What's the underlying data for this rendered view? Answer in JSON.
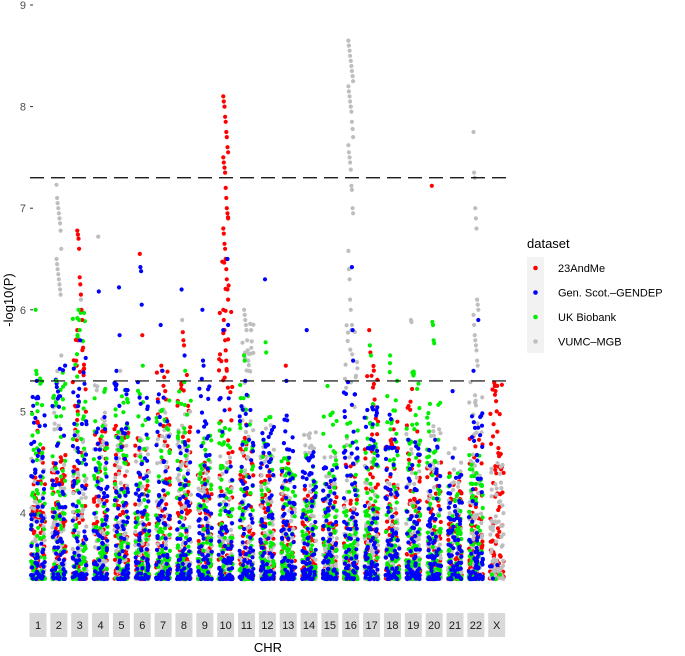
{
  "chart_data": {
    "type": "scatter",
    "subtype": "manhattan",
    "title": "",
    "xlabel": "CHR",
    "ylabel": "-log10(P)",
    "ylim": [
      3.3,
      9.05
    ],
    "yticks": [
      4,
      5,
      6,
      7,
      8,
      9
    ],
    "grid": false,
    "thresholds": [
      7.3,
      5.3
    ],
    "threshold_style": "dashed",
    "legend": {
      "title": "dataset",
      "placement": "right",
      "entries": [
        {
          "name": "23AndMe",
          "color": "#ff0000"
        },
        {
          "name": "Gen. Scot.–GENDEP",
          "color": "#0000ff"
        },
        {
          "name": "UK Biobank",
          "color": "#00ee00"
        },
        {
          "name": "VUMC–MGB",
          "color": "#bebebe"
        }
      ]
    },
    "chromosomes": [
      "1",
      "2",
      "3",
      "4",
      "5",
      "6",
      "7",
      "8",
      "9",
      "10",
      "11",
      "12",
      "13",
      "14",
      "15",
      "16",
      "17",
      "18",
      "19",
      "20",
      "21",
      "22",
      "X"
    ],
    "bulk_max": {
      "series_order": [
        "23AndMe",
        "VUMC–MGB",
        "UK Biobank",
        "Gen. Scot.–GENDEP"
      ],
      "values": [
        [
          4.9,
          4.6,
          5.4,
          5.3
        ],
        [
          4.6,
          5.5,
          5.4,
          5.6
        ],
        [
          5.9,
          4.8,
          6.0,
          5.7
        ],
        [
          4.9,
          5.3,
          5.3,
          5.0
        ],
        [
          4.9,
          4.8,
          5.3,
          5.4
        ],
        [
          4.8,
          4.8,
          5.3,
          5.3
        ],
        [
          5.4,
          5.1,
          5.2,
          5.2
        ],
        [
          5.4,
          5.0,
          5.3,
          4.8
        ],
        [
          4.5,
          4.6,
          4.8,
          5.4
        ],
        [
          7.0,
          4.6,
          4.9,
          5.2
        ],
        [
          4.9,
          6.0,
          5.3,
          5.2
        ],
        [
          4.6,
          4.9,
          5.0,
          5.0
        ],
        [
          4.5,
          4.4,
          4.6,
          5.0
        ],
        [
          4.3,
          4.8,
          4.6,
          4.6
        ],
        [
          4.3,
          4.6,
          5.0,
          4.5
        ],
        [
          4.5,
          5.9,
          5.0,
          5.3
        ],
        [
          5.5,
          4.6,
          5.2,
          5.1
        ],
        [
          4.9,
          4.3,
          5.5,
          5.0
        ],
        [
          5.2,
          4.8,
          5.4,
          4.9
        ],
        [
          4.5,
          4.9,
          5.2,
          4.8
        ],
        [
          4.4,
          4.7,
          4.4,
          4.6
        ],
        [
          4.8,
          5.3,
          4.6,
          5.0
        ],
        [
          5.3,
          4.5,
          3.5,
          3.5
        ]
      ]
    },
    "top_hits": [
      {
        "chr": "1",
        "points": [
          [
            "UK Biobank",
            6.0
          ],
          [
            "UK Biobank",
            5.4
          ],
          [
            "Gen. Scot.–GENDEP",
            5.3
          ],
          [
            "23AndMe",
            4.9
          ]
        ]
      },
      {
        "chr": "2",
        "points": [
          [
            "VUMC–MGB",
            7.23
          ],
          [
            "VUMC–MGB",
            7.1
          ],
          [
            "VUMC–MGB",
            7.05
          ],
          [
            "VUMC–MGB",
            7.0
          ],
          [
            "VUMC–MGB",
            6.95
          ],
          [
            "VUMC–MGB",
            6.9
          ],
          [
            "VUMC–MGB",
            6.85
          ],
          [
            "VUMC–MGB",
            6.78
          ],
          [
            "VUMC–MGB",
            6.6
          ],
          [
            "VUMC–MGB",
            6.5
          ],
          [
            "VUMC–MGB",
            6.45
          ],
          [
            "VUMC–MGB",
            6.4
          ],
          [
            "VUMC–MGB",
            6.35
          ],
          [
            "VUMC–MGB",
            6.3
          ],
          [
            "VUMC–MGB",
            6.25
          ],
          [
            "VUMC–MGB",
            6.2
          ],
          [
            "VUMC–MGB",
            6.15
          ],
          [
            "VUMC–MGB",
            5.55
          ],
          [
            "UK Biobank",
            5.3
          ]
        ]
      },
      {
        "chr": "3",
        "points": [
          [
            "23AndMe",
            6.78
          ],
          [
            "23AndMe",
            6.74
          ],
          [
            "23AndMe",
            6.7
          ],
          [
            "23AndMe",
            6.6
          ],
          [
            "23AndMe",
            6.32
          ],
          [
            "23AndMe",
            6.25
          ],
          [
            "23AndMe",
            6.15
          ],
          [
            "23AndMe",
            6.0
          ],
          [
            "23AndMe",
            5.9
          ],
          [
            "23AndMe",
            5.8
          ],
          [
            "23AndMe",
            5.7
          ],
          [
            "UK Biobank",
            6.0
          ],
          [
            "UK Biobank",
            5.9
          ],
          [
            "UK Biobank",
            5.8
          ],
          [
            "Gen. Scot.–GENDEP",
            5.7
          ],
          [
            "VUMC–MGB",
            6.1
          ]
        ]
      },
      {
        "chr": "4",
        "points": [
          [
            "VUMC–MGB",
            6.72
          ],
          [
            "Gen. Scot.–GENDEP",
            6.18
          ]
        ]
      },
      {
        "chr": "5",
        "points": [
          [
            "Gen. Scot.–GENDEP",
            6.22
          ],
          [
            "Gen. Scot.–GENDEP",
            5.75
          ],
          [
            "VUMC–MGB",
            5.4
          ]
        ]
      },
      {
        "chr": "6",
        "points": [
          [
            "23AndMe",
            6.55
          ],
          [
            "Gen. Scot.–GENDEP",
            6.42
          ],
          [
            "Gen. Scot.–GENDEP",
            6.38
          ],
          [
            "Gen. Scot.–GENDEP",
            6.05
          ],
          [
            "23AndMe",
            5.75
          ],
          [
            "UK Biobank",
            5.45
          ]
        ]
      },
      {
        "chr": "7",
        "points": [
          [
            "Gen. Scot.–GENDEP",
            5.85
          ],
          [
            "23AndMe",
            5.45
          ],
          [
            "23AndMe",
            5.4
          ],
          [
            "Gen. Scot.–GENDEP",
            5.4
          ]
        ]
      },
      {
        "chr": "8",
        "points": [
          [
            "Gen. Scot.–GENDEP",
            6.2
          ],
          [
            "VUMC–MGB",
            5.9
          ],
          [
            "23AndMe",
            5.78
          ],
          [
            "23AndMe",
            5.7
          ],
          [
            "23AndMe",
            5.65
          ],
          [
            "Gen. Scot.–GENDEP",
            5.55
          ],
          [
            "UK Biobank",
            5.4
          ]
        ]
      },
      {
        "chr": "9",
        "points": [
          [
            "Gen. Scot.–GENDEP",
            6.0
          ],
          [
            "Gen. Scot.–GENDEP",
            5.5
          ],
          [
            "Gen. Scot.–GENDEP",
            5.45
          ]
        ]
      },
      {
        "chr": "10",
        "points": [
          [
            "23AndMe",
            8.1
          ],
          [
            "23AndMe",
            8.05
          ],
          [
            "23AndMe",
            8.0
          ],
          [
            "23AndMe",
            7.9
          ],
          [
            "23AndMe",
            7.85
          ],
          [
            "23AndMe",
            7.75
          ],
          [
            "23AndMe",
            7.7
          ],
          [
            "23AndMe",
            7.6
          ],
          [
            "23AndMe",
            7.55
          ],
          [
            "23AndMe",
            7.5
          ],
          [
            "23AndMe",
            7.45
          ],
          [
            "23AndMe",
            7.4
          ],
          [
            "23AndMe",
            7.35
          ],
          [
            "23AndMe",
            7.2
          ],
          [
            "23AndMe",
            7.1
          ],
          [
            "23AndMe",
            7.0
          ],
          [
            "23AndMe",
            6.95
          ],
          [
            "23AndMe",
            6.9
          ],
          [
            "23AndMe",
            6.8
          ],
          [
            "23AndMe",
            6.75
          ],
          [
            "23AndMe",
            6.65
          ],
          [
            "23AndMe",
            6.6
          ],
          [
            "23AndMe",
            6.5
          ],
          [
            "23AndMe",
            6.4
          ],
          [
            "23AndMe",
            6.3
          ],
          [
            "23AndMe",
            6.2
          ],
          [
            "23AndMe",
            6.1
          ],
          [
            "23AndMe",
            6.0
          ],
          [
            "23AndMe",
            5.9
          ],
          [
            "23AndMe",
            5.8
          ],
          [
            "23AndMe",
            5.7
          ],
          [
            "23AndMe",
            5.6
          ],
          [
            "23AndMe",
            5.5
          ],
          [
            "23AndMe",
            5.4
          ],
          [
            "Gen. Scot.–GENDEP",
            6.5
          ],
          [
            "Gen. Scot.–GENDEP",
            5.85
          ],
          [
            "Gen. Scot.–GENDEP",
            5.8
          ]
        ]
      },
      {
        "chr": "11",
        "points": [
          [
            "VUMC–MGB",
            6.0
          ],
          [
            "VUMC–MGB",
            5.95
          ],
          [
            "VUMC–MGB",
            5.9
          ],
          [
            "VUMC–MGB",
            5.85
          ],
          [
            "VUMC–MGB",
            5.8
          ],
          [
            "VUMC–MGB",
            5.7
          ],
          [
            "VUMC–MGB",
            5.6
          ],
          [
            "VUMC–MGB",
            5.5
          ],
          [
            "VUMC–MGB",
            5.4
          ],
          [
            "UK Biobank",
            5.55
          ],
          [
            "UK Biobank",
            5.5
          ],
          [
            "Gen. Scot.–GENDEP",
            5.3
          ]
        ]
      },
      {
        "chr": "12",
        "points": [
          [
            "Gen. Scot.–GENDEP",
            6.3
          ],
          [
            "UK Biobank",
            5.68
          ],
          [
            "UK Biobank",
            5.58
          ]
        ]
      },
      {
        "chr": "13",
        "points": [
          [
            "23AndMe",
            5.45
          ],
          [
            "Gen. Scot.–GENDEP",
            5.3
          ]
        ]
      },
      {
        "chr": "14",
        "points": [
          [
            "Gen. Scot.–GENDEP",
            5.8
          ]
        ]
      },
      {
        "chr": "15",
        "points": [
          [
            "UK Biobank",
            5.25
          ]
        ]
      },
      {
        "chr": "16",
        "points": [
          [
            "VUMC–MGB",
            8.65
          ],
          [
            "VUMC–MGB",
            8.6
          ],
          [
            "VUMC–MGB",
            8.55
          ],
          [
            "VUMC–MGB",
            8.5
          ],
          [
            "VUMC–MGB",
            8.45
          ],
          [
            "VUMC–MGB",
            8.4
          ],
          [
            "VUMC–MGB",
            8.35
          ],
          [
            "VUMC–MGB",
            8.3
          ],
          [
            "VUMC–MGB",
            8.25
          ],
          [
            "VUMC–MGB",
            8.2
          ],
          [
            "VUMC–MGB",
            8.15
          ],
          [
            "VUMC–MGB",
            8.1
          ],
          [
            "VUMC–MGB",
            8.05
          ],
          [
            "VUMC–MGB",
            8.0
          ],
          [
            "VUMC–MGB",
            7.95
          ],
          [
            "VUMC–MGB",
            7.85
          ],
          [
            "VUMC–MGB",
            7.78
          ],
          [
            "VUMC–MGB",
            7.7
          ],
          [
            "VUMC–MGB",
            7.62
          ],
          [
            "VUMC–MGB",
            7.55
          ],
          [
            "VUMC–MGB",
            7.5
          ],
          [
            "VUMC–MGB",
            7.45
          ],
          [
            "VUMC–MGB",
            7.38
          ],
          [
            "VUMC–MGB",
            7.22
          ],
          [
            "VUMC–MGB",
            7.18
          ],
          [
            "VUMC–MGB",
            7.0
          ],
          [
            "VUMC–MGB",
            6.95
          ],
          [
            "VUMC–MGB",
            6.58
          ],
          [
            "VUMC–MGB",
            6.4
          ],
          [
            "VUMC–MGB",
            6.3
          ],
          [
            "VUMC–MGB",
            6.1
          ],
          [
            "VUMC–MGB",
            6.0
          ],
          [
            "VUMC–MGB",
            5.8
          ],
          [
            "Gen. Scot.–GENDEP",
            6.42
          ],
          [
            "Gen. Scot.–GENDEP",
            5.8
          ],
          [
            "Gen. Scot.–GENDEP",
            5.5
          ]
        ]
      },
      {
        "chr": "17",
        "points": [
          [
            "23AndMe",
            5.8
          ],
          [
            "UK Biobank",
            5.65
          ],
          [
            "23AndMe",
            5.58
          ],
          [
            "UK Biobank",
            5.55
          ],
          [
            "23AndMe",
            5.35
          ]
        ]
      },
      {
        "chr": "18",
        "points": [
          [
            "UK Biobank",
            5.55
          ]
        ]
      },
      {
        "chr": "19",
        "points": [
          [
            "VUMC–MGB",
            5.9
          ],
          [
            "VUMC–MGB",
            5.88
          ],
          [
            "23AndMe",
            5.22
          ]
        ]
      },
      {
        "chr": "20",
        "points": [
          [
            "23AndMe",
            7.22
          ],
          [
            "UK Biobank",
            5.88
          ],
          [
            "UK Biobank",
            5.85
          ],
          [
            "UK Biobank",
            5.7
          ],
          [
            "UK Biobank",
            5.67
          ]
        ]
      },
      {
        "chr": "21",
        "points": [
          [
            "Gen. Scot.–GENDEP",
            5.2
          ]
        ]
      },
      {
        "chr": "22",
        "points": [
          [
            "VUMC–MGB",
            7.75
          ],
          [
            "VUMC–MGB",
            7.35
          ],
          [
            "VUMC–MGB",
            7.3
          ],
          [
            "VUMC–MGB",
            7.0
          ],
          [
            "VUMC–MGB",
            6.9
          ],
          [
            "VUMC–MGB",
            6.8
          ],
          [
            "VUMC–MGB",
            6.1
          ],
          [
            "VUMC–MGB",
            6.05
          ],
          [
            "VUMC–MGB",
            6.0
          ],
          [
            "VUMC–MGB",
            5.95
          ],
          [
            "VUMC–MGB",
            5.85
          ],
          [
            "VUMC–MGB",
            5.75
          ],
          [
            "VUMC–MGB",
            5.7
          ],
          [
            "VUMC–MGB",
            5.65
          ],
          [
            "VUMC–MGB",
            5.6
          ],
          [
            "VUMC–MGB",
            5.5
          ],
          [
            "VUMC–MGB",
            5.45
          ],
          [
            "Gen. Scot.–GENDEP",
            5.9
          ],
          [
            "Gen. Scot.–GENDEP",
            5.4
          ]
        ]
      },
      {
        "chr": "X",
        "points": [
          [
            "23AndMe",
            5.28
          ],
          [
            "23AndMe",
            5.25
          ],
          [
            "23AndMe",
            5.2
          ],
          [
            "23AndMe",
            5.1
          ],
          [
            "23AndMe",
            5.0
          ],
          [
            "23AndMe",
            4.8
          ]
        ]
      }
    ]
  }
}
